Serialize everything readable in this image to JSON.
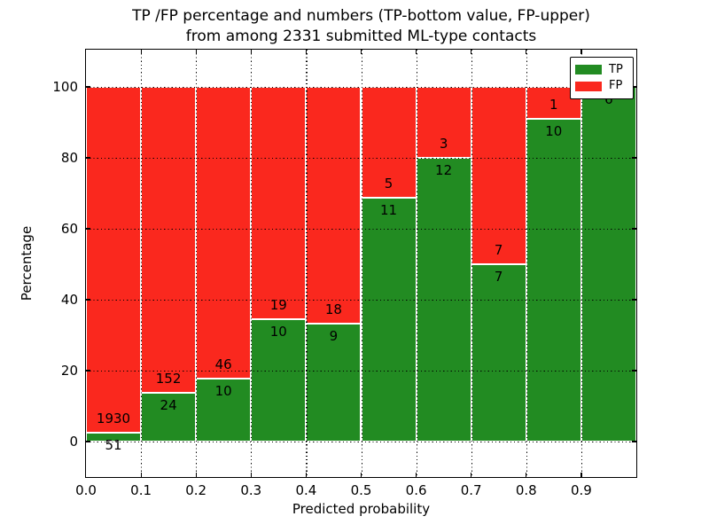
{
  "title": {
    "line1": "TP /FP percentage and numbers (TP-bottom value, FP-upper)",
    "line2": "from among 2331 submitted ML-type contacts"
  },
  "axes": {
    "xlabel": "Predicted probability",
    "ylabel": "Percentage",
    "x_tick_labels": [
      "0.0",
      "0.1",
      "0.2",
      "0.3",
      "0.4",
      "0.5",
      "0.6",
      "0.7",
      "0.8",
      "0.9"
    ],
    "y_tick_labels": [
      "0",
      "20",
      "40",
      "60",
      "80",
      "100"
    ],
    "y_tick_values": [
      0,
      20,
      40,
      60,
      80,
      100
    ],
    "xlim": [
      0.0,
      1.0
    ],
    "ylim": [
      -10,
      110
    ],
    "grid_style": "dotted"
  },
  "legend": {
    "position": "upper right",
    "items": [
      {
        "name": "TP",
        "label": "TP",
        "color": "#228b22"
      },
      {
        "name": "FP",
        "label": "FP",
        "color": "#fa281e"
      }
    ]
  },
  "colors": {
    "tp": "#228b22",
    "fp": "#fa281e",
    "grid": "#000000",
    "background": "#ffffff",
    "bar_edge": "#ffffff"
  },
  "chart_data": {
    "type": "bar",
    "stacked": true,
    "normalized_to_percent": true,
    "title": "TP /FP percentage and numbers (TP-bottom value, FP-upper) from among 2331 submitted ML-type contacts",
    "xlabel": "Predicted probability",
    "ylabel": "Percentage",
    "total_contacts": 2331,
    "bin_edges": [
      0.0,
      0.1,
      0.2,
      0.3,
      0.4,
      0.5,
      0.6,
      0.7,
      0.8,
      0.9,
      1.0
    ],
    "series": [
      {
        "name": "TP",
        "counts": [
          51,
          24,
          10,
          10,
          9,
          11,
          12,
          7,
          10,
          6
        ],
        "percent": [
          2.57,
          13.64,
          17.86,
          34.48,
          33.33,
          68.75,
          80.0,
          50.0,
          90.91,
          100.0
        ]
      },
      {
        "name": "FP",
        "counts": [
          1930,
          152,
          46,
          19,
          18,
          5,
          3,
          7,
          1,
          0
        ],
        "percent": [
          97.43,
          86.36,
          82.14,
          65.52,
          66.67,
          31.25,
          20.0,
          50.0,
          9.09,
          0.0
        ]
      }
    ],
    "x_ticks": [
      0.0,
      0.1,
      0.2,
      0.3,
      0.4,
      0.5,
      0.6,
      0.7,
      0.8,
      0.9
    ],
    "y_ticks": [
      0,
      20,
      40,
      60,
      80,
      100
    ],
    "ylim": [
      -10,
      110
    ],
    "legend_position": "upper right",
    "grid": true
  }
}
